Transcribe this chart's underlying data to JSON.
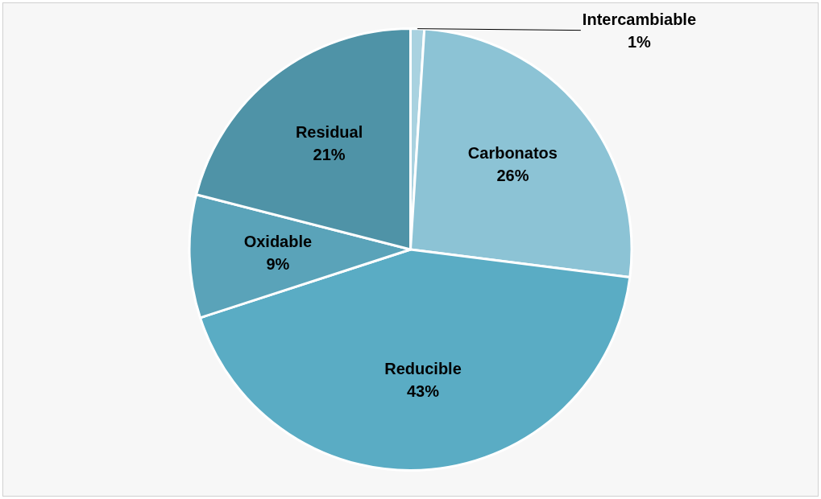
{
  "chart_data": {
    "type": "pie",
    "categories": [
      "Intercambiable",
      "Carbonatos",
      "Reducible",
      "Oxidable",
      "Residual"
    ],
    "values": [
      1,
      26,
      43,
      9,
      21
    ],
    "value_labels": [
      "1%",
      "26%",
      "43%",
      "9%",
      "21%"
    ],
    "colors": [
      "#a9d2e0",
      "#8cc3d5",
      "#5aacc4",
      "#5aa3b9",
      "#4f93a7"
    ],
    "legend": false
  }
}
